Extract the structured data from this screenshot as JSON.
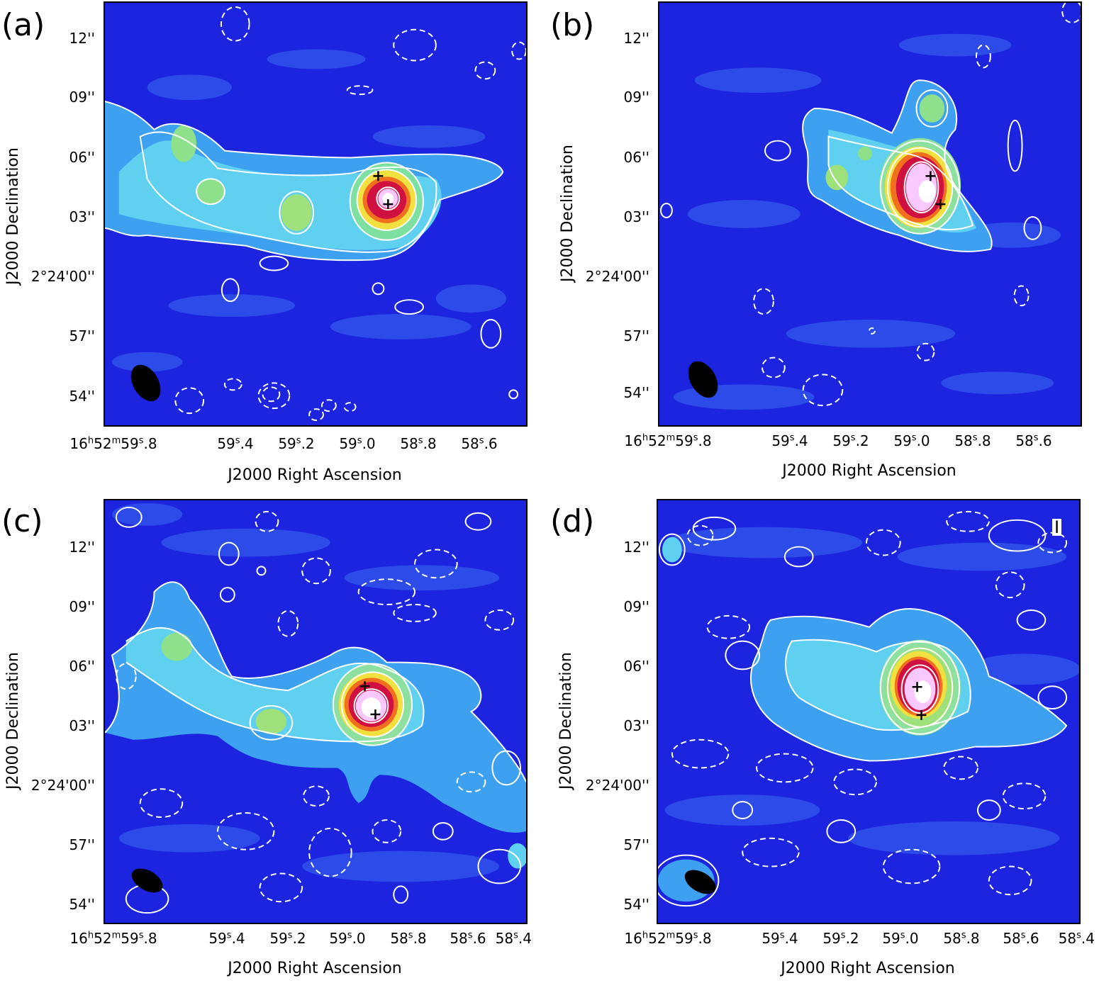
{
  "panels": [
    {
      "label": "(a)",
      "stokes": "",
      "y_ticks": [
        "12''",
        "09''",
        "06''",
        "03''",
        "2°24'00''",
        "57''",
        "54''"
      ],
      "x_ticks": [
        "16h52m59s.8",
        "59s.4",
        "59s.2",
        "59s.0",
        "58s.8",
        "58s.6"
      ],
      "x_label": "J2000 Right Ascension",
      "y_label": "J2000 Declination"
    },
    {
      "label": "(b)",
      "stokes": "",
      "y_ticks": [
        "12''",
        "09''",
        "06''",
        "03''",
        "2°24'00''",
        "57''",
        "54''"
      ],
      "x_ticks": [
        "16h52m59s.8",
        "59s.4",
        "59s.2",
        "59s.0",
        "58s.8",
        "58s.6"
      ],
      "x_label": "J2000 Right Ascension",
      "y_label": "J2000 Declination"
    },
    {
      "label": "(c)",
      "stokes": "",
      "y_ticks": [
        "12''",
        "09''",
        "06''",
        "03''",
        "2°24'00''",
        "57''",
        "54''"
      ],
      "x_ticks": [
        "16h52m59s.8",
        "59s.4",
        "59s.2",
        "59s.0",
        "58s.8",
        "58s.6",
        "58s.4"
      ],
      "x_label": "J2000 Right Ascension",
      "y_label": "J2000 Declination"
    },
    {
      "label": "(d)",
      "stokes": "I",
      "y_ticks": [
        "12''",
        "09''",
        "06''",
        "03''",
        "2°24'00''",
        "57''",
        "54''"
      ],
      "x_ticks": [
        "16h52m59s.8",
        "59s.4",
        "59s.2",
        "59s.0",
        "58s.8",
        "58s.6",
        "58s.4"
      ],
      "x_label": "J2000 Right Ascension",
      "y_label": "J2000 Declination"
    }
  ],
  "colors": {
    "background": "#1a1ee0",
    "low": "#3a6cf0",
    "mid": "#5fd0f0",
    "green": "#7ee07a",
    "yellow": "#f0e040",
    "orange": "#f07020",
    "red": "#d01040",
    "peak": "#f8e8ff",
    "contour": "#ffffff",
    "beam": "#000000"
  }
}
